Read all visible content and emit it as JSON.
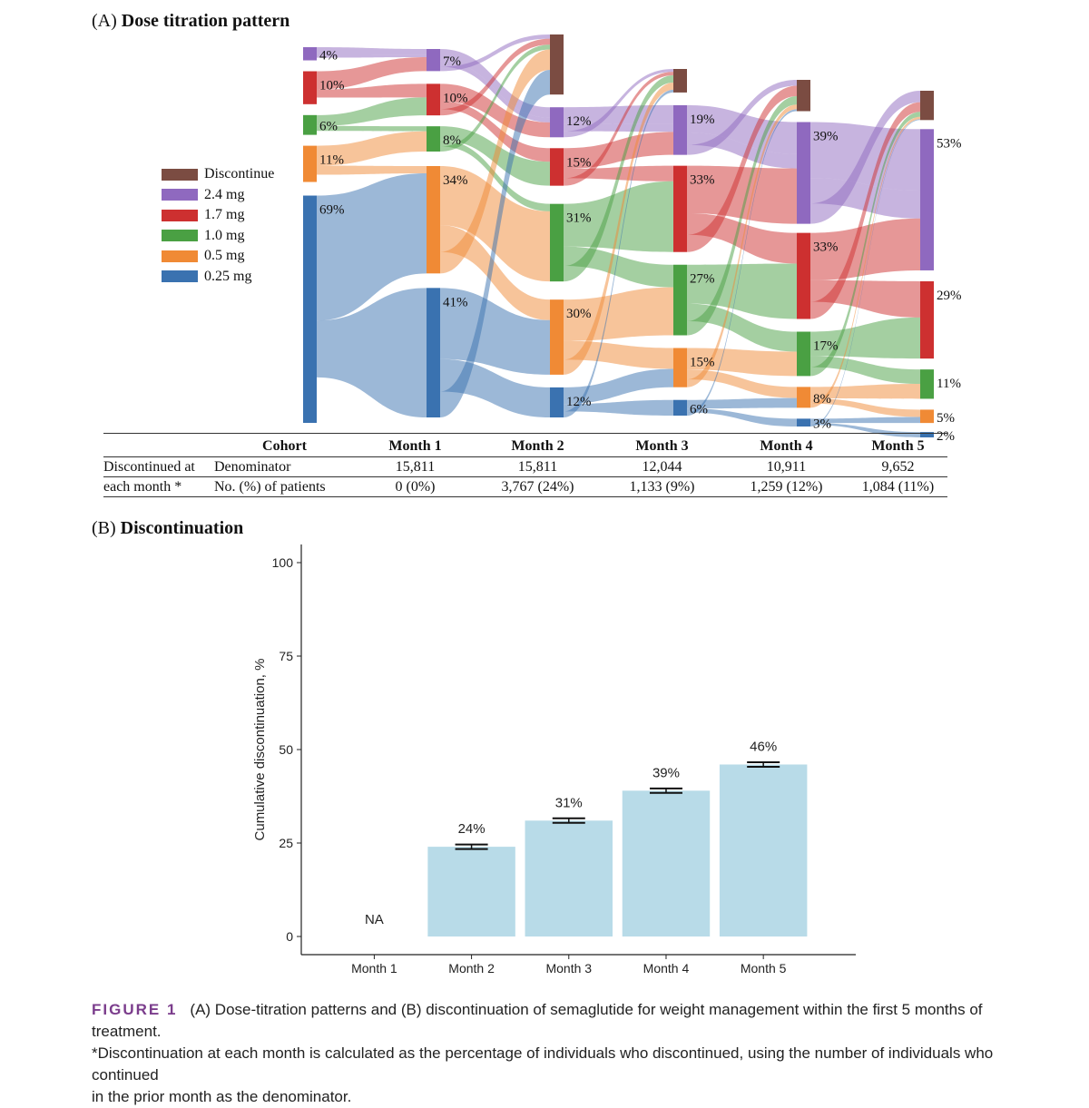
{
  "panel_a": {
    "label": "(A)",
    "title": "Dose titration  pattern"
  },
  "colors": {
    "Discontinue": "#7b4c42",
    "2.4 mg": "#8f69bf",
    "1.7 mg": "#cd3030",
    "1.0 mg": "#4aa043",
    "0.5 mg": "#f08a35",
    "0.25 mg": "#3a72b0",
    "bar": "#b8dbe8"
  },
  "legend": [
    "Discontinue",
    "2.4 mg",
    "1.7 mg",
    "1.0 mg",
    "0.5 mg",
    "0.25 mg"
  ],
  "table": {
    "headers": [
      "Cohort",
      "Month 1",
      "Month 2",
      "Month 3",
      "Month 4",
      "Month 5"
    ],
    "row_group_line1": "Discontinued at",
    "row_group_line2": "each month *",
    "rows": [
      {
        "label": "Denominator",
        "values": [
          "15,811",
          "15,811",
          "12,044",
          "10,911",
          "9,652"
        ]
      },
      {
        "label": "No. (%) of patients",
        "values": [
          "0 (0%)",
          "3,767 (24%)",
          "1,133 (9%)",
          "1,259 (12%)",
          "1,084 (11%)"
        ]
      }
    ]
  },
  "panel_b": {
    "label": "(B)",
    "title": "Discontinuation"
  },
  "caption": {
    "figure_label": "FIGURE 1",
    "line1": "(A) Dose-titration patterns and (B) discontinuation of semaglutide for weight management within the first 5 months of treatment.",
    "line2": "*Discontinuation at each month is calculated as the percentage of individuals who discontinued, using the number of individuals who continued",
    "line3": "in the prior month as the denominator."
  },
  "chart_data": [
    {
      "type": "sankey",
      "title": "Dose titration  pattern",
      "stages": [
        "Month 1",
        "Month 2",
        "Month 3",
        "Month 4",
        "Month 5"
      ],
      "categories": [
        "Discontinue",
        "2.4 mg",
        "1.7 mg",
        "1.0 mg",
        "0.5 mg",
        "0.25 mg"
      ],
      "nodes": [
        {
          "stage": 0,
          "label": "Discontinue",
          "percent": 0,
          "text": ""
        },
        {
          "stage": 0,
          "label": "2.4 mg",
          "percent": 4,
          "text": "4%"
        },
        {
          "stage": 0,
          "label": "1.7 mg",
          "percent": 10,
          "text": "10%"
        },
        {
          "stage": 0,
          "label": "1.0 mg",
          "percent": 6,
          "text": "6%"
        },
        {
          "stage": 0,
          "label": "0.5 mg",
          "percent": 11,
          "text": "11%"
        },
        {
          "stage": 0,
          "label": "0.25 mg",
          "percent": 69,
          "text": "69%"
        },
        {
          "stage": 1,
          "label": "Discontinue",
          "percent": 0,
          "text": ""
        },
        {
          "stage": 1,
          "label": "2.4 mg",
          "percent": 7,
          "text": "7%"
        },
        {
          "stage": 1,
          "label": "1.7 mg",
          "percent": 10,
          "text": "10%"
        },
        {
          "stage": 1,
          "label": "1.0 mg",
          "percent": 8,
          "text": "8%"
        },
        {
          "stage": 1,
          "label": "0.5 mg",
          "percent": 34,
          "text": "34%"
        },
        {
          "stage": 1,
          "label": "0.25 mg",
          "percent": 41,
          "text": "41%"
        },
        {
          "stage": 2,
          "label": "Discontinue",
          "percent": 24,
          "text": ""
        },
        {
          "stage": 2,
          "label": "2.4 mg",
          "percent": 12,
          "text": "12%"
        },
        {
          "stage": 2,
          "label": "1.7 mg",
          "percent": 15,
          "text": "15%"
        },
        {
          "stage": 2,
          "label": "1.0 mg",
          "percent": 31,
          "text": "31%"
        },
        {
          "stage": 2,
          "label": "0.5 mg",
          "percent": 30,
          "text": "30%"
        },
        {
          "stage": 2,
          "label": "0.25 mg",
          "percent": 12,
          "text": "12%"
        },
        {
          "stage": 3,
          "label": "Discontinue",
          "percent": 9,
          "text": ""
        },
        {
          "stage": 3,
          "label": "2.4 mg",
          "percent": 19,
          "text": "19%"
        },
        {
          "stage": 3,
          "label": "1.7 mg",
          "percent": 33,
          "text": "33%"
        },
        {
          "stage": 3,
          "label": "1.0 mg",
          "percent": 27,
          "text": "27%"
        },
        {
          "stage": 3,
          "label": "0.5 mg",
          "percent": 15,
          "text": "15%"
        },
        {
          "stage": 3,
          "label": "0.25 mg",
          "percent": 6,
          "text": "6%"
        },
        {
          "stage": 4,
          "label": "Discontinue",
          "percent": 12,
          "text": ""
        },
        {
          "stage": 4,
          "label": "2.4 mg",
          "percent": 39,
          "text": "39%"
        },
        {
          "stage": 4,
          "label": "1.7 mg",
          "percent": 33,
          "text": "33%"
        },
        {
          "stage": 4,
          "label": "1.0 mg",
          "percent": 17,
          "text": "17%"
        },
        {
          "stage": 4,
          "label": "0.5 mg",
          "percent": 8,
          "text": "8%"
        },
        {
          "stage": 4,
          "label": "0.25 mg",
          "percent": 3,
          "text": "3%"
        },
        {
          "stage": 5,
          "label": "Discontinue",
          "percent": 11,
          "text": ""
        },
        {
          "stage": 5,
          "label": "2.4 mg",
          "percent": 53,
          "text": "53%"
        },
        {
          "stage": 5,
          "label": "1.7 mg",
          "percent": 29,
          "text": "29%"
        },
        {
          "stage": 5,
          "label": "1.0 mg",
          "percent": 11,
          "text": "11%"
        },
        {
          "stage": 5,
          "label": "0.5 mg",
          "percent": 5,
          "text": "5%"
        },
        {
          "stage": 5,
          "label": "0.25 mg",
          "percent": 2,
          "text": "2%"
        }
      ]
    },
    {
      "type": "bar",
      "title": "Discontinuation",
      "categories": [
        "Month 1",
        "Month 2",
        "Month 3",
        "Month 4",
        "Month 5"
      ],
      "values": [
        null,
        24,
        31,
        39,
        46
      ],
      "data_labels": [
        "NA",
        "24%",
        "31%",
        "39%",
        "46%"
      ],
      "error_bars": [
        null,
        [
          23.4,
          24.6
        ],
        [
          30.4,
          31.6
        ],
        [
          38.4,
          39.6
        ],
        [
          45.4,
          46.6
        ]
      ],
      "ylabel": "Cumulative discontinuation, %",
      "xlabel": "",
      "ylim": [
        0,
        100
      ],
      "yticks": [
        0,
        25,
        50,
        75,
        100
      ]
    }
  ]
}
